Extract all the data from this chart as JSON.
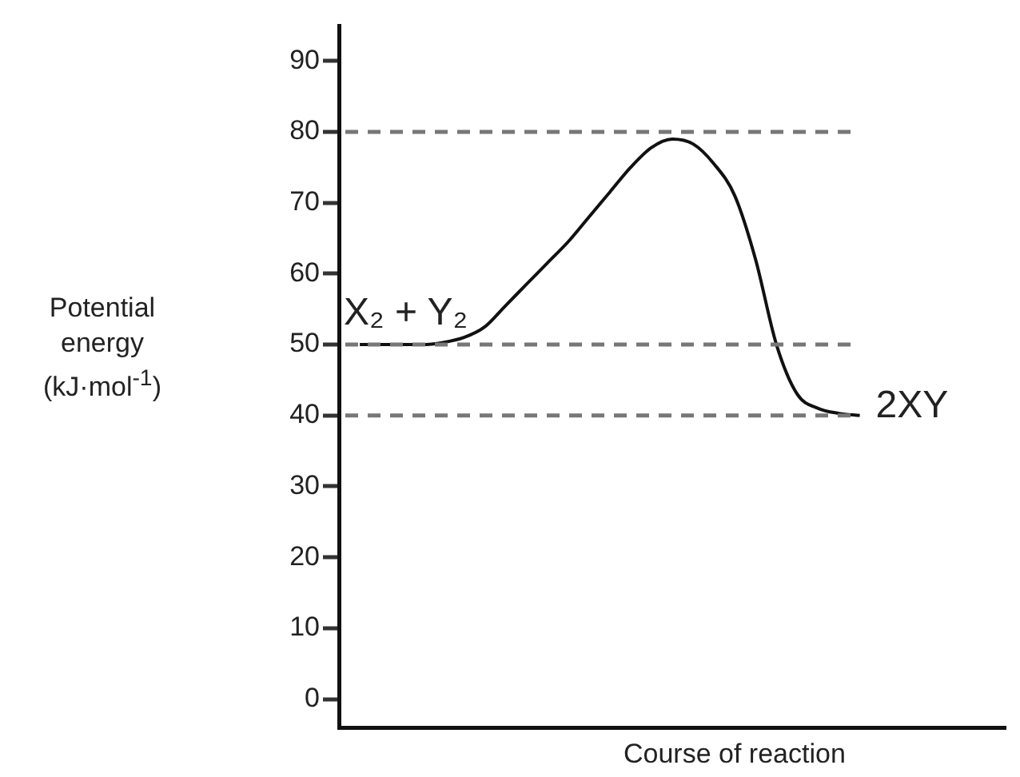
{
  "chart_data": {
    "type": "line",
    "xlabel": "Course of reaction",
    "ylabel": "Potential energy (kJ·mol$^{-1}$)",
    "categories": [
      null,
      null,
      null,
      null,
      null,
      null,
      null,
      null,
      null,
      null,
      null,
      null,
      null,
      null,
      null,
      null,
      null,
      null,
      null,
      null,
      null,
      null,
      null,
      null,
      null,
      null,
      null,
      null,
      null,
      null,
      null,
      null,
      null
    ],
    "series": [
      {
        "color": "#111111",
        "values": [
          null,
          50,
          50,
          50,
          50,
          50.3,
          51,
          52.5,
          55.5,
          58.5,
          61.5,
          64.5,
          68,
          71.5,
          75,
          77.8,
          79,
          78.3,
          75.5,
          71,
          62,
          50,
          43,
          41,
          40.3,
          40,
          null,
          null,
          null,
          null,
          null,
          null,
          null
        ]
      }
    ],
    "ylim": [
      -4,
      95
    ],
    "yticks": [
      0,
      10,
      20,
      30,
      40,
      50,
      60,
      70,
      80,
      90
    ],
    "ref_lines": [
      {
        "axis": "y",
        "value": 80,
        "color": "#777777",
        "line_style": "dashed"
      },
      {
        "axis": "y",
        "value": 50,
        "color": "#777777",
        "line_style": "dashed"
      },
      {
        "axis": "y",
        "value": 40,
        "color": "#777777",
        "line_style": "dashed"
      }
    ],
    "annotations": [
      "X₂ + Y₂",
      "2XY"
    ],
    "grid": false,
    "legend": false,
    "marker": "none",
    "line_style": "solid",
    "tick_labels": "y"
  }
}
